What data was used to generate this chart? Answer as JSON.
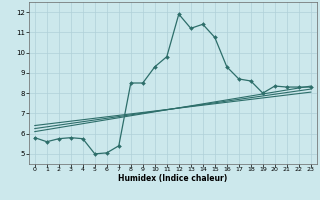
{
  "title": "",
  "xlabel": "Humidex (Indice chaleur)",
  "ylabel": "",
  "bg_color": "#cce8ec",
  "grid_color": "#b0d0d8",
  "line_color": "#2d6e6a",
  "xlim": [
    -0.5,
    23.5
  ],
  "ylim": [
    4.5,
    12.5
  ],
  "xticks": [
    0,
    1,
    2,
    3,
    4,
    5,
    6,
    7,
    8,
    9,
    10,
    11,
    12,
    13,
    14,
    15,
    16,
    17,
    18,
    19,
    20,
    21,
    22,
    23
  ],
  "yticks": [
    5,
    6,
    7,
    8,
    9,
    10,
    11,
    12
  ],
  "main_x": [
    0,
    1,
    2,
    3,
    4,
    5,
    6,
    7,
    8,
    9,
    10,
    11,
    12,
    13,
    14,
    15,
    16,
    17,
    18,
    19,
    20,
    21,
    22,
    23
  ],
  "main_y": [
    5.8,
    5.6,
    5.75,
    5.8,
    5.75,
    5.0,
    5.05,
    5.4,
    8.5,
    8.5,
    9.3,
    9.8,
    11.9,
    11.2,
    11.4,
    10.75,
    9.3,
    8.7,
    8.6,
    8.0,
    8.35,
    8.3,
    8.3,
    8.3
  ],
  "line1_x": [
    0,
    23
  ],
  "line1_y": [
    6.1,
    8.35
  ],
  "line2_x": [
    0,
    23
  ],
  "line2_y": [
    6.25,
    8.2
  ],
  "line3_x": [
    0,
    23
  ],
  "line3_y": [
    6.4,
    8.05
  ],
  "figsize": [
    3.2,
    2.0
  ],
  "dpi": 100
}
